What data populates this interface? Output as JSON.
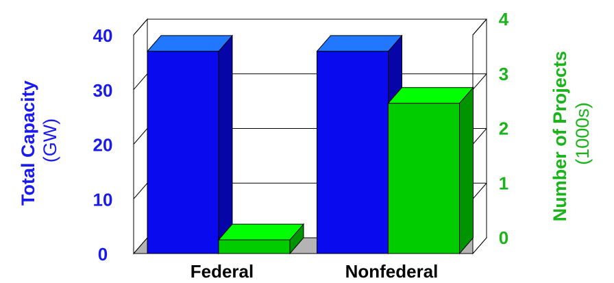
{
  "chart_data": {
    "type": "bar",
    "categories": [
      "Federal",
      "Nonfederal"
    ],
    "series": [
      {
        "axis": "left",
        "values": [
          37,
          37
        ]
      },
      {
        "axis": "right",
        "values": [
          0.25,
          2.75
        ]
      }
    ],
    "left_axis": {
      "label_bold": "Total Capacity",
      "label_unit": "(GW)",
      "ticks": [
        "0",
        "10",
        "20",
        "30",
        "40"
      ],
      "ylim": [
        0,
        40
      ],
      "color": "#1a1aee"
    },
    "right_axis": {
      "label_bold": "Number of Projects",
      "label_unit": "(1000s)",
      "ticks": [
        "0",
        "1",
        "2",
        "3",
        "4"
      ],
      "ylim": [
        0,
        4
      ],
      "color": "#1ab31a"
    },
    "grid": true,
    "style": "3d",
    "colors": {
      "blue_front": "#0a0aee",
      "blue_side": "#0505a8",
      "blue_top": "#2277ff",
      "green_front": "#00cc00",
      "green_side": "#009400",
      "green_top": "#00ff00",
      "floor": "#b4b4b4"
    }
  }
}
